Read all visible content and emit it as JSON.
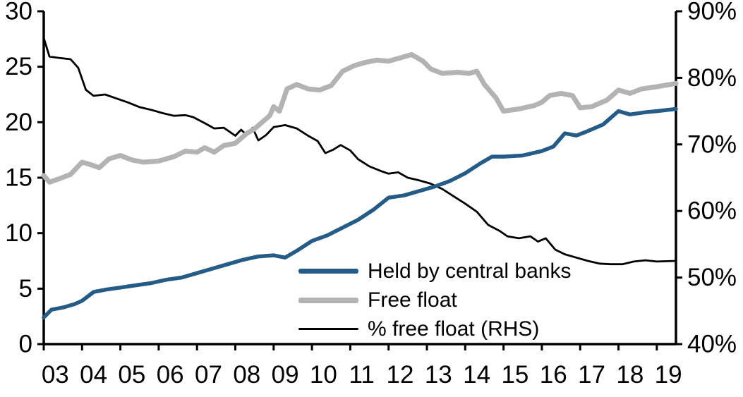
{
  "chart_data": {
    "type": "line",
    "title": "",
    "background": "#ffffff",
    "x_range": [
      2003,
      2019.5
    ],
    "x_ticks": [
      2003,
      2004,
      2005,
      2006,
      2007,
      2008,
      2009,
      2010,
      2011,
      2012,
      2013,
      2014,
      2015,
      2016,
      2017,
      2018,
      2019
    ],
    "x_tick_labels": [
      "03",
      "04",
      "05",
      "06",
      "07",
      "08",
      "09",
      "10",
      "11",
      "12",
      "13",
      "14",
      "15",
      "16",
      "17",
      "18",
      "19"
    ],
    "left_axis": {
      "range": [
        0,
        30
      ],
      "ticks": [
        0,
        5,
        10,
        15,
        20,
        25,
        30
      ],
      "labels": [
        "0",
        "5",
        "10",
        "15",
        "20",
        "25",
        "30"
      ]
    },
    "right_axis": {
      "range": [
        40,
        90
      ],
      "ticks": [
        40,
        50,
        60,
        70,
        80,
        90
      ],
      "labels": [
        "40%",
        "50%",
        "60%",
        "70%",
        "80%",
        "90%"
      ]
    },
    "legend_position": "inside-bottom-center",
    "series": [
      {
        "name": "Held by central banks",
        "axis": "left",
        "color": "#245c87",
        "width": 5.5,
        "points": [
          [
            2003.0,
            2.4
          ],
          [
            2003.2,
            3.1
          ],
          [
            2003.5,
            3.3
          ],
          [
            2003.8,
            3.6
          ],
          [
            2004.0,
            3.9
          ],
          [
            2004.3,
            4.7
          ],
          [
            2004.6,
            4.9
          ],
          [
            2005.0,
            5.1
          ],
          [
            2005.4,
            5.3
          ],
          [
            2005.8,
            5.5
          ],
          [
            2006.2,
            5.8
          ],
          [
            2006.6,
            6.0
          ],
          [
            2007.0,
            6.4
          ],
          [
            2007.4,
            6.8
          ],
          [
            2007.8,
            7.2
          ],
          [
            2008.2,
            7.6
          ],
          [
            2008.6,
            7.9
          ],
          [
            2009.0,
            8.0
          ],
          [
            2009.3,
            7.8
          ],
          [
            2009.6,
            8.4
          ],
          [
            2010.0,
            9.3
          ],
          [
            2010.4,
            9.8
          ],
          [
            2010.8,
            10.5
          ],
          [
            2011.2,
            11.2
          ],
          [
            2011.6,
            12.1
          ],
          [
            2012.0,
            13.2
          ],
          [
            2012.4,
            13.4
          ],
          [
            2012.8,
            13.8
          ],
          [
            2013.2,
            14.2
          ],
          [
            2013.6,
            14.7
          ],
          [
            2014.0,
            15.4
          ],
          [
            2014.4,
            16.3
          ],
          [
            2014.7,
            16.9
          ],
          [
            2015.0,
            16.9
          ],
          [
            2015.5,
            17.0
          ],
          [
            2016.0,
            17.4
          ],
          [
            2016.3,
            17.8
          ],
          [
            2016.6,
            19.0
          ],
          [
            2016.9,
            18.8
          ],
          [
            2017.2,
            19.2
          ],
          [
            2017.6,
            19.8
          ],
          [
            2018.0,
            21.0
          ],
          [
            2018.3,
            20.7
          ],
          [
            2018.7,
            20.9
          ],
          [
            2019.0,
            21.0
          ],
          [
            2019.5,
            21.2
          ]
        ]
      },
      {
        "name": "Free float",
        "axis": "left",
        "color": "#b3b3b3",
        "width": 7,
        "points": [
          [
            2003.0,
            15.2
          ],
          [
            2003.15,
            14.6
          ],
          [
            2003.4,
            14.9
          ],
          [
            2003.7,
            15.3
          ],
          [
            2004.0,
            16.4
          ],
          [
            2004.2,
            16.2
          ],
          [
            2004.45,
            15.9
          ],
          [
            2004.7,
            16.7
          ],
          [
            2005.0,
            17.0
          ],
          [
            2005.3,
            16.6
          ],
          [
            2005.6,
            16.4
          ],
          [
            2006.0,
            16.5
          ],
          [
            2006.4,
            16.9
          ],
          [
            2006.7,
            17.4
          ],
          [
            2007.0,
            17.3
          ],
          [
            2007.2,
            17.7
          ],
          [
            2007.45,
            17.3
          ],
          [
            2007.7,
            17.9
          ],
          [
            2008.0,
            18.1
          ],
          [
            2008.3,
            19.0
          ],
          [
            2008.5,
            19.4
          ],
          [
            2008.7,
            20.0
          ],
          [
            2008.9,
            20.6
          ],
          [
            2009.0,
            21.4
          ],
          [
            2009.15,
            21.0
          ],
          [
            2009.35,
            23.0
          ],
          [
            2009.6,
            23.4
          ],
          [
            2009.9,
            23.0
          ],
          [
            2010.2,
            22.9
          ],
          [
            2010.5,
            23.3
          ],
          [
            2010.8,
            24.6
          ],
          [
            2011.1,
            25.1
          ],
          [
            2011.4,
            25.4
          ],
          [
            2011.7,
            25.6
          ],
          [
            2012.0,
            25.5
          ],
          [
            2012.3,
            25.8
          ],
          [
            2012.6,
            26.1
          ],
          [
            2012.9,
            25.5
          ],
          [
            2013.1,
            24.8
          ],
          [
            2013.4,
            24.4
          ],
          [
            2013.8,
            24.5
          ],
          [
            2014.1,
            24.4
          ],
          [
            2014.3,
            24.6
          ],
          [
            2014.5,
            23.4
          ],
          [
            2014.8,
            22.2
          ],
          [
            2015.0,
            21.0
          ],
          [
            2015.4,
            21.2
          ],
          [
            2015.8,
            21.5
          ],
          [
            2016.0,
            21.8
          ],
          [
            2016.2,
            22.4
          ],
          [
            2016.5,
            22.6
          ],
          [
            2016.8,
            22.4
          ],
          [
            2017.0,
            21.3
          ],
          [
            2017.3,
            21.4
          ],
          [
            2017.7,
            22.0
          ],
          [
            2018.0,
            22.9
          ],
          [
            2018.3,
            22.6
          ],
          [
            2018.6,
            23.0
          ],
          [
            2019.0,
            23.2
          ],
          [
            2019.5,
            23.5
          ]
        ]
      },
      {
        "name": "% free float (RHS)",
        "axis": "right",
        "color": "#000000",
        "width": 2.8,
        "points": [
          [
            2003.0,
            86.0
          ],
          [
            2003.15,
            83.2
          ],
          [
            2003.4,
            83.0
          ],
          [
            2003.7,
            82.8
          ],
          [
            2003.9,
            81.5
          ],
          [
            2004.1,
            78.2
          ],
          [
            2004.3,
            77.3
          ],
          [
            2004.6,
            77.5
          ],
          [
            2004.9,
            76.9
          ],
          [
            2005.2,
            76.3
          ],
          [
            2005.5,
            75.6
          ],
          [
            2005.8,
            75.2
          ],
          [
            2006.1,
            74.7
          ],
          [
            2006.4,
            74.3
          ],
          [
            2006.7,
            74.4
          ],
          [
            2006.9,
            74.1
          ],
          [
            2007.2,
            73.2
          ],
          [
            2007.45,
            72.4
          ],
          [
            2007.7,
            72.5
          ],
          [
            2008.0,
            71.3
          ],
          [
            2008.15,
            72.2
          ],
          [
            2008.3,
            71.4
          ],
          [
            2008.45,
            72.5
          ],
          [
            2008.6,
            70.6
          ],
          [
            2008.8,
            71.4
          ],
          [
            2009.0,
            72.6
          ],
          [
            2009.3,
            72.9
          ],
          [
            2009.6,
            72.4
          ],
          [
            2009.9,
            71.3
          ],
          [
            2010.15,
            70.5
          ],
          [
            2010.35,
            68.7
          ],
          [
            2010.55,
            69.2
          ],
          [
            2010.75,
            69.9
          ],
          [
            2011.0,
            69.1
          ],
          [
            2011.2,
            67.8
          ],
          [
            2011.5,
            66.7
          ],
          [
            2011.8,
            66.0
          ],
          [
            2012.0,
            65.6
          ],
          [
            2012.25,
            65.8
          ],
          [
            2012.5,
            65.0
          ],
          [
            2012.8,
            64.6
          ],
          [
            2013.1,
            64.1
          ],
          [
            2013.4,
            63.3
          ],
          [
            2013.7,
            62.2
          ],
          [
            2014.0,
            61.1
          ],
          [
            2014.3,
            59.9
          ],
          [
            2014.6,
            57.9
          ],
          [
            2014.9,
            57.0
          ],
          [
            2015.1,
            56.2
          ],
          [
            2015.4,
            55.9
          ],
          [
            2015.7,
            56.2
          ],
          [
            2015.9,
            55.4
          ],
          [
            2016.1,
            55.9
          ],
          [
            2016.35,
            54.2
          ],
          [
            2016.6,
            53.5
          ],
          [
            2016.9,
            53.0
          ],
          [
            2017.2,
            52.5
          ],
          [
            2017.5,
            52.1
          ],
          [
            2017.8,
            52.0
          ],
          [
            2018.1,
            52.0
          ],
          [
            2018.4,
            52.4
          ],
          [
            2018.7,
            52.6
          ],
          [
            2019.0,
            52.4
          ],
          [
            2019.5,
            52.5
          ]
        ]
      }
    ]
  }
}
